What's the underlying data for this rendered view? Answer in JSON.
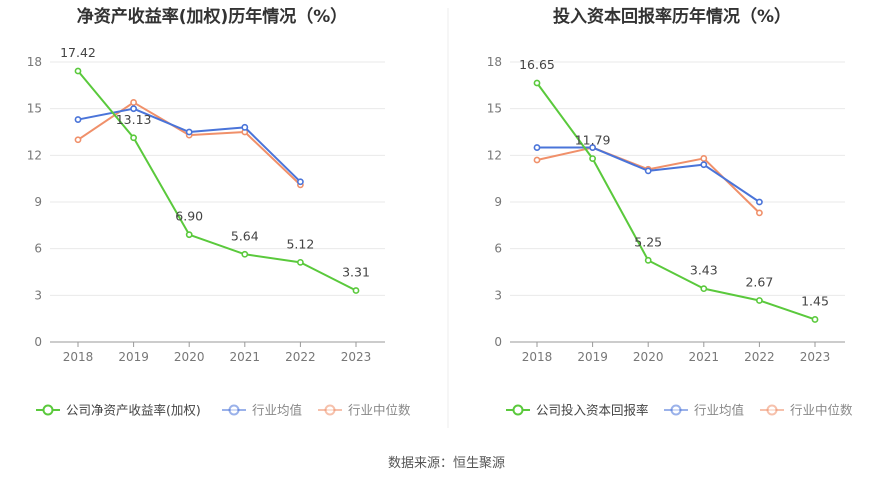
{
  "colors": {
    "company": "#5ac93c",
    "avg": "#4a74d9",
    "median": "#f0906a",
    "grid": "#e9e9e9",
    "axis": "#999999",
    "tick_text": "#777777",
    "title": "#333333",
    "label": "#444444",
    "divider": "#eeeeee"
  },
  "footer": {
    "source": "数据来源：恒生聚源"
  },
  "chart_data": [
    {
      "type": "line",
      "title": "净资产收益率(加权)历年情况（%）",
      "categories": [
        "2018",
        "2019",
        "2020",
        "2021",
        "2022",
        "2023"
      ],
      "ylim": [
        0,
        18
      ],
      "yticks": [
        0,
        3,
        6,
        9,
        12,
        15,
        18
      ],
      "grid": true,
      "legend_position": "bottom-left",
      "series": [
        {
          "key": "company",
          "name": "公司净资产收益率(加权)",
          "values": [
            17.42,
            13.13,
            6.9,
            5.64,
            5.12,
            3.31
          ],
          "labels": [
            "17.42",
            "13.13",
            "6.90",
            "5.64",
            "5.12",
            "3.31"
          ]
        },
        {
          "key": "avg",
          "name": "行业均值",
          "values": [
            14.3,
            15.0,
            13.5,
            13.8,
            10.3,
            null
          ]
        },
        {
          "key": "median",
          "name": "行业中位数",
          "values": [
            13.0,
            15.4,
            13.3,
            13.5,
            10.1,
            null
          ]
        }
      ]
    },
    {
      "type": "line",
      "title": "投入资本回报率历年情况（%）",
      "categories": [
        "2018",
        "2019",
        "2020",
        "2021",
        "2022",
        "2023"
      ],
      "ylim": [
        0,
        18
      ],
      "yticks": [
        0,
        3,
        6,
        9,
        12,
        15,
        18
      ],
      "grid": true,
      "legend_position": "bottom-left",
      "series": [
        {
          "key": "company",
          "name": "公司投入资本回报率",
          "values": [
            16.65,
            11.79,
            5.25,
            3.43,
            2.67,
            1.45
          ],
          "labels": [
            "16.65",
            "11.79",
            "5.25",
            "3.43",
            "2.67",
            "1.45"
          ]
        },
        {
          "key": "avg",
          "name": "行业均值",
          "values": [
            12.5,
            12.5,
            11.0,
            11.4,
            9.0,
            null
          ]
        },
        {
          "key": "median",
          "name": "行业中位数",
          "values": [
            11.7,
            12.5,
            11.1,
            11.8,
            8.3,
            null
          ]
        }
      ]
    }
  ]
}
